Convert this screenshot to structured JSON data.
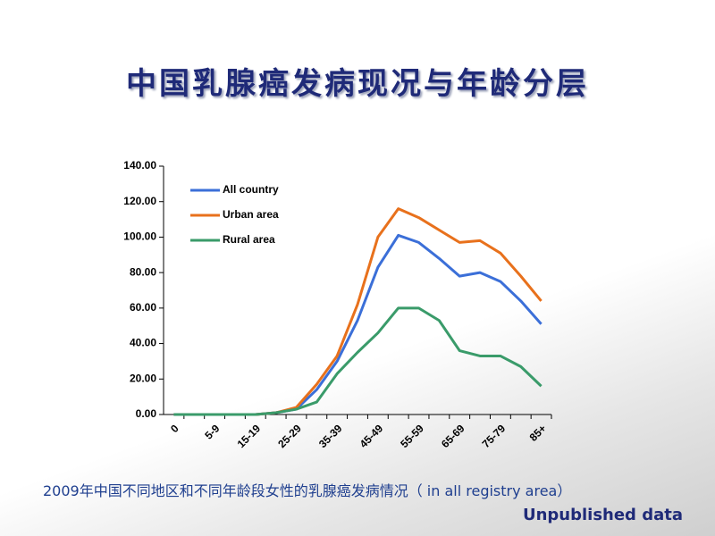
{
  "chart_data": {
    "type": "line",
    "title": "中国乳腺癌发病现况与年龄分层",
    "caption": "2009年中国不同地区和不同年龄段女性的乳腺癌发病情况（ in all registry area）",
    "note": "Unpublished  data",
    "categories": [
      "0",
      null,
      "5-9",
      null,
      "15-19",
      null,
      "25-29",
      null,
      "35-39",
      null,
      "45-49",
      null,
      "55-59",
      null,
      "65-69",
      null,
      "75-79",
      null,
      "85+"
    ],
    "series": [
      {
        "name": "All country",
        "color": "#3b6fd8",
        "values": [
          0,
          0,
          0,
          0,
          0,
          1,
          3,
          14,
          30,
          53,
          83,
          101,
          97,
          88,
          78,
          80,
          75,
          64,
          51
        ]
      },
      {
        "name": "Urban area",
        "color": "#e8711c",
        "values": [
          0,
          0,
          0,
          0,
          0,
          1,
          4,
          17,
          33,
          62,
          100,
          116,
          111,
          104,
          97,
          98,
          91,
          78,
          64
        ]
      },
      {
        "name": "Rural area",
        "color": "#3a9b6a",
        "values": [
          0,
          0,
          0,
          0,
          0,
          1,
          3,
          7,
          23,
          35,
          46,
          60,
          60,
          53,
          36,
          33,
          33,
          27,
          16
        ]
      }
    ],
    "ylim": [
      0,
      140
    ],
    "yticks": [
      {
        "value": 0,
        "label": "0.00"
      },
      {
        "value": 20,
        "label": "20.00"
      },
      {
        "value": 40,
        "label": "40.00"
      },
      {
        "value": 60,
        "label": "60.00"
      },
      {
        "value": 80,
        "label": "80.00"
      },
      {
        "value": 100,
        "label": "100.00"
      },
      {
        "value": 120,
        "label": "120.00"
      },
      {
        "value": 140,
        "label": "140.00"
      }
    ],
    "legend": "upper-left"
  }
}
